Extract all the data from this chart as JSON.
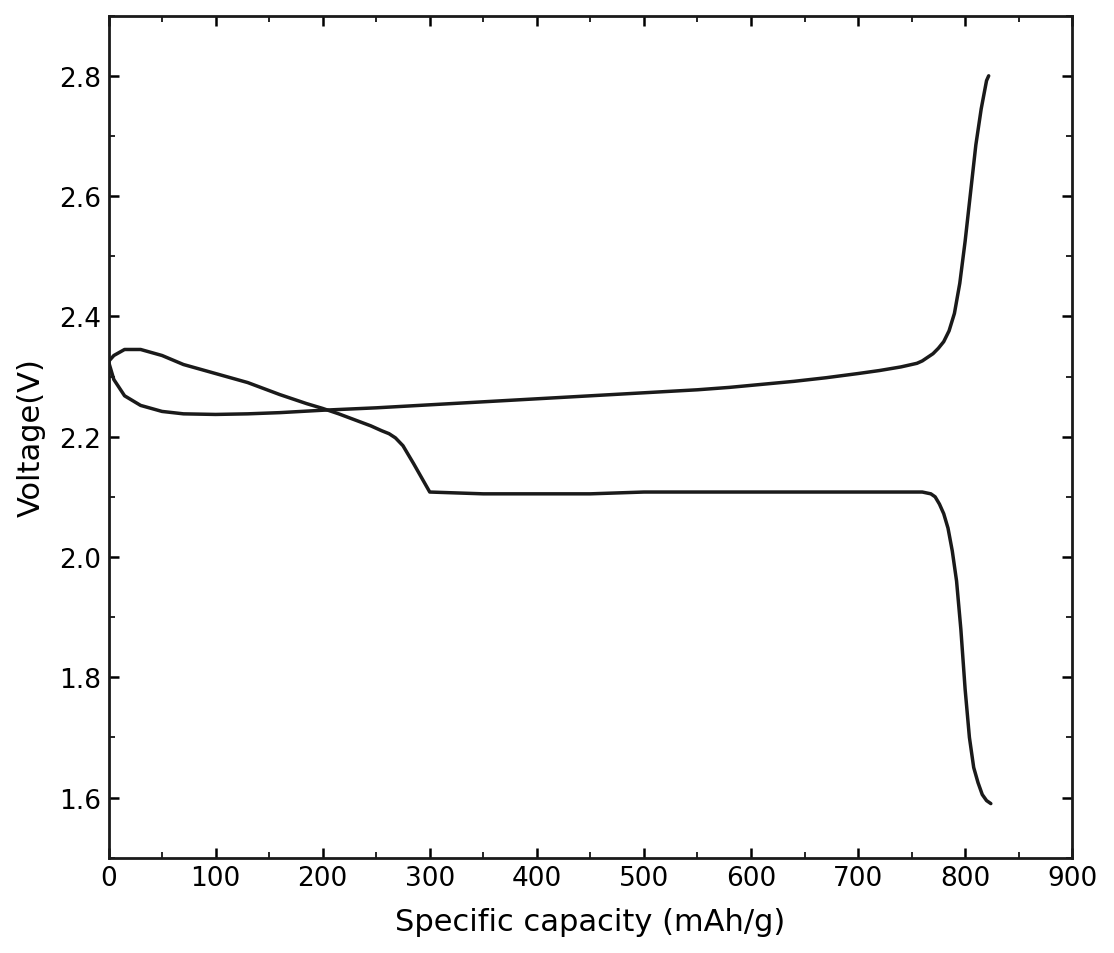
{
  "title": "",
  "xlabel": "Specific capacity (mAh/g)",
  "ylabel": "Voltage(V)",
  "xlim": [
    0,
    900
  ],
  "ylim": [
    1.5,
    2.9
  ],
  "xticks": [
    0,
    100,
    200,
    300,
    400,
    500,
    600,
    700,
    800,
    900
  ],
  "yticks": [
    1.6,
    1.8,
    2.0,
    2.2,
    2.4,
    2.6,
    2.8
  ],
  "line_color": "#1a1a1a",
  "line_width": 2.5,
  "background_color": "#ffffff",
  "discharge_x": [
    0,
    5,
    15,
    30,
    50,
    70,
    100,
    130,
    160,
    185,
    200,
    215,
    230,
    245,
    255,
    262,
    268,
    275,
    285,
    300,
    350,
    400,
    450,
    500,
    550,
    600,
    650,
    700,
    730,
    750,
    760,
    768,
    772,
    776,
    780,
    784,
    788,
    792,
    796,
    800,
    804,
    808,
    812,
    816,
    820,
    824
  ],
  "discharge_y": [
    2.325,
    2.335,
    2.345,
    2.345,
    2.335,
    2.32,
    2.305,
    2.29,
    2.27,
    2.255,
    2.247,
    2.238,
    2.228,
    2.218,
    2.21,
    2.205,
    2.198,
    2.185,
    2.155,
    2.108,
    2.105,
    2.105,
    2.105,
    2.108,
    2.108,
    2.108,
    2.108,
    2.108,
    2.108,
    2.108,
    2.108,
    2.105,
    2.1,
    2.088,
    2.072,
    2.048,
    2.01,
    1.96,
    1.88,
    1.78,
    1.7,
    1.65,
    1.625,
    1.605,
    1.595,
    1.59
  ],
  "charge_x": [
    0,
    5,
    15,
    30,
    50,
    70,
    100,
    130,
    160,
    200,
    250,
    300,
    350,
    400,
    450,
    500,
    550,
    580,
    610,
    640,
    670,
    700,
    720,
    740,
    755,
    760,
    765,
    770,
    775,
    780,
    785,
    790,
    795,
    800,
    805,
    810,
    815,
    820,
    822
  ],
  "charge_y": [
    2.325,
    2.295,
    2.268,
    2.252,
    2.242,
    2.238,
    2.237,
    2.238,
    2.24,
    2.244,
    2.248,
    2.253,
    2.258,
    2.263,
    2.268,
    2.273,
    2.278,
    2.282,
    2.287,
    2.292,
    2.298,
    2.305,
    2.31,
    2.316,
    2.322,
    2.326,
    2.332,
    2.338,
    2.347,
    2.358,
    2.376,
    2.405,
    2.455,
    2.525,
    2.605,
    2.685,
    2.745,
    2.792,
    2.8
  ]
}
